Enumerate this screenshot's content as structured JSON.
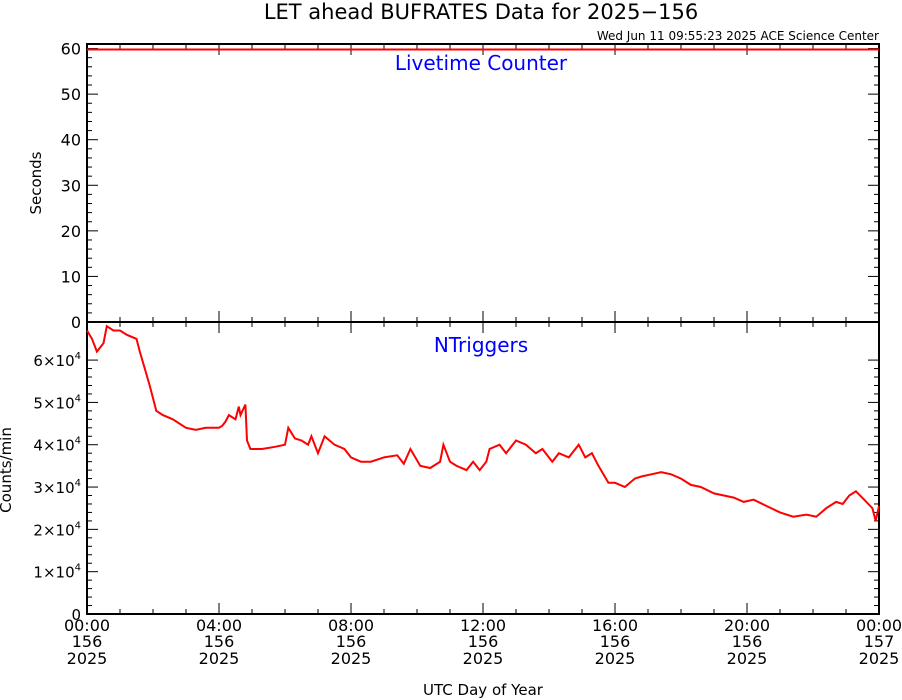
{
  "title": "LET ahead BUFRATES Data for 2025−156",
  "timestamp": "Wed Jun 11 09:55:23 2025 ACE Science Center",
  "x_axis": {
    "label": "UTC Day of Year",
    "ticks": [
      {
        "time": "00:00",
        "doy": "156",
        "year": "2025"
      },
      {
        "time": "04:00",
        "doy": "156",
        "year": "2025"
      },
      {
        "time": "08:00",
        "doy": "156",
        "year": "2025"
      },
      {
        "time": "12:00",
        "doy": "156",
        "year": "2025"
      },
      {
        "time": "16:00",
        "doy": "156",
        "year": "2025"
      },
      {
        "time": "20:00",
        "doy": "156",
        "year": "2025"
      },
      {
        "time": "00:00",
        "doy": "157",
        "year": "2025"
      }
    ]
  },
  "colors": {
    "series": "#ff0000",
    "panel_title": "#0000ff",
    "axes": "#000000"
  },
  "chart_data": [
    {
      "type": "line",
      "title": "Livetime Counter",
      "ylabel": "Seconds",
      "ylim": [
        0,
        61
      ],
      "xlim_hours": [
        0,
        24
      ],
      "y_ticks": [
        "0",
        "10",
        "20",
        "30",
        "40",
        "50",
        "60"
      ],
      "series": [
        {
          "x_hours": [
            0,
            24
          ],
          "y": [
            59.8,
            59.8
          ]
        }
      ]
    },
    {
      "type": "line",
      "title": "NTriggers",
      "ylabel": "Counts/min",
      "ylim": [
        0,
        69000
      ],
      "xlim_hours": [
        0,
        24
      ],
      "y_ticks": [
        {
          "mantissa": "0",
          "exp": ""
        },
        {
          "mantissa": "1×10",
          "exp": "4"
        },
        {
          "mantissa": "2×10",
          "exp": "4"
        },
        {
          "mantissa": "3×10",
          "exp": "4"
        },
        {
          "mantissa": "4×10",
          "exp": "4"
        },
        {
          "mantissa": "5×10",
          "exp": "4"
        },
        {
          "mantissa": "6×10",
          "exp": "4"
        }
      ],
      "series": [
        {
          "x_hours": [
            0,
            0.15,
            0.3,
            0.5,
            0.6,
            0.8,
            1.0,
            1.2,
            1.5,
            1.6,
            1.75,
            1.9,
            2.1,
            2.3,
            2.6,
            3.0,
            3.3,
            3.6,
            4.0,
            4.1,
            4.2,
            4.3,
            4.5,
            4.6,
            4.65,
            4.8,
            4.85,
            4.95,
            5.3,
            5.7,
            6.0,
            6.1,
            6.3,
            6.5,
            6.7,
            6.8,
            7.0,
            7.2,
            7.5,
            7.8,
            8.0,
            8.3,
            8.6,
            9.0,
            9.4,
            9.6,
            9.8,
            10.1,
            10.4,
            10.7,
            10.8,
            11.0,
            11.2,
            11.5,
            11.7,
            11.9,
            12.1,
            12.2,
            12.5,
            12.7,
            13.0,
            13.3,
            13.6,
            13.8,
            14.1,
            14.3,
            14.6,
            14.9,
            15.1,
            15.3,
            15.5,
            15.8,
            16.0,
            16.3,
            16.6,
            16.8,
            17.1,
            17.4,
            17.7,
            18.0,
            18.3,
            18.6,
            19.0,
            19.3,
            19.6,
            19.9,
            20.2,
            20.6,
            21.0,
            21.4,
            21.8,
            22.1,
            22.4,
            22.7,
            22.9,
            23.1,
            23.3,
            23.55,
            23.8,
            23.9,
            24.0
          ],
          "y": [
            67000,
            65000,
            62000,
            64000,
            68000,
            67000,
            67000,
            66000,
            65000,
            62000,
            58000,
            54000,
            48000,
            47000,
            46000,
            44000,
            43500,
            44000,
            44000,
            44500,
            45500,
            47000,
            46000,
            49000,
            47000,
            49500,
            41000,
            39000,
            39000,
            39500,
            40000,
            44000,
            41500,
            41000,
            40000,
            42000,
            38000,
            42000,
            40000,
            39000,
            37000,
            36000,
            36000,
            37000,
            37500,
            35500,
            39000,
            35000,
            34500,
            36000,
            40000,
            36000,
            35000,
            34000,
            36000,
            34000,
            36000,
            39000,
            40000,
            38000,
            41000,
            40000,
            38000,
            39000,
            36000,
            38000,
            37000,
            40000,
            37000,
            38000,
            35000,
            31000,
            31000,
            30000,
            32000,
            32500,
            33000,
            33500,
            33000,
            32000,
            30500,
            30000,
            28500,
            28000,
            27500,
            26500,
            27000,
            25500,
            24000,
            23000,
            23500,
            23000,
            25000,
            26500,
            26000,
            28000,
            29000,
            27000,
            25000,
            22000,
            25500
          ]
        }
      ]
    }
  ]
}
